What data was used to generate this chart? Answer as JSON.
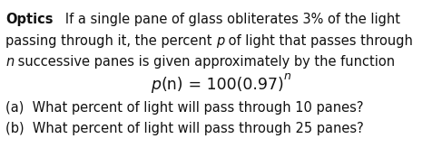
{
  "background_color": "#ffffff",
  "text_color": "#111111",
  "font_size_main": 10.5,
  "font_size_formula": 12.5,
  "font_size_super": 9.0,
  "fig_width": 4.87,
  "fig_height": 1.64,
  "dpi": 100,
  "line1_bold": "Optics",
  "line1_normal": "   If a single pane of glass obliterates 3% of the light",
  "line2_pre": "passing through it, the percent ",
  "line2_italic": "p",
  "line2_post": " of light that passes through",
  "line3_italic": "n",
  "line3_post": " successive panes is given approximately by the function",
  "formula_p": "p",
  "formula_paren_n": "(n)",
  "formula_eq_rest": " = 100(0.97)",
  "formula_super": "n",
  "qa": "(a)  What percent of light will pass through 10 panes?",
  "qb": "(b)  What percent of light will pass through 25 panes?"
}
